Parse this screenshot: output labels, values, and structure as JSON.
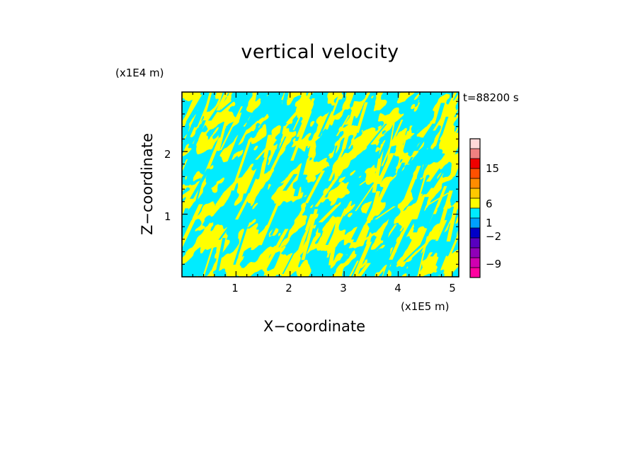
{
  "chart_data": {
    "type": "heatmap",
    "title": "vertical velocity",
    "xlabel": "X−coordinate",
    "ylabel": "Z−coordinate",
    "x_unit_label": "(x1E5 m)",
    "z_unit_label": "(x1E4 m)",
    "time_label": "t=88200 s",
    "xlim": [
      0,
      5.12
    ],
    "ylim": [
      0,
      2.95
    ],
    "x_ticks": [
      "1",
      "2",
      "3",
      "4",
      "5"
    ],
    "x_tick_values": [
      1,
      2,
      3,
      4,
      5
    ],
    "y_ticks": [
      "1",
      "2"
    ],
    "y_tick_values": [
      1,
      2
    ],
    "field_colors": {
      "positive": "#ffff00",
      "negative": "#00ecff"
    },
    "colorbar": {
      "tick_labels": [
        "15",
        "6",
        "1",
        "−2",
        "−9"
      ],
      "tick_values": [
        15,
        6,
        1,
        -2,
        -9
      ],
      "levels": [
        -12,
        -9,
        -6,
        -4,
        -2,
        -1,
        0,
        1,
        2,
        4,
        6,
        9,
        12,
        15,
        20
      ],
      "colors": [
        "#ff00a0",
        "#d000b0",
        "#9000b8",
        "#5800c0",
        "#0000c8",
        "#00a0ff",
        "#00ecff",
        "#ffff00",
        "#ffc800",
        "#ff8c00",
        "#ff5000",
        "#f00000",
        "#f08080",
        "#ffd8d8"
      ]
    }
  }
}
